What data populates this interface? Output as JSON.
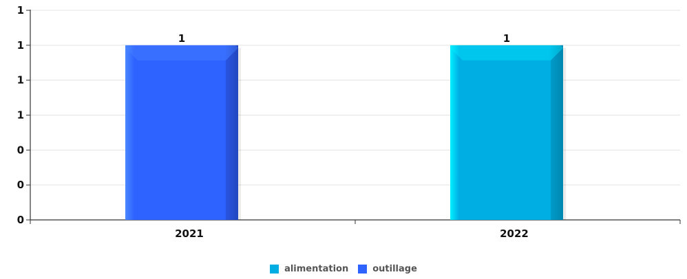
{
  "chart_data": {
    "type": "bar",
    "categories": [
      "2021",
      "2022"
    ],
    "series": [
      {
        "name": "alimentation",
        "color": "#00AEE4",
        "highlight": "#00F0FF",
        "shade": "#0087B0",
        "values": [
          null,
          1
        ]
      },
      {
        "name": "outillage",
        "color": "#2F63FF",
        "highlight": "#4A88FF",
        "shade": "#2347C0",
        "values": [
          1,
          null
        ]
      }
    ],
    "y_ticks": [
      {
        "value": 0,
        "label": "0"
      },
      {
        "value": 0.2,
        "label": "0"
      },
      {
        "value": 0.4,
        "label": "0"
      },
      {
        "value": 0.6,
        "label": "1"
      },
      {
        "value": 0.8,
        "label": "1"
      },
      {
        "value": 1.0,
        "label": "1"
      },
      {
        "value": 1.2,
        "label": "1"
      }
    ],
    "data_labels": [
      "1",
      "1"
    ],
    "ylim": [
      0,
      1.2
    ],
    "grid": true,
    "legend_position": "bottom-center"
  },
  "legend": {
    "items": [
      {
        "label": "alimentation",
        "color": "#00AEE4"
      },
      {
        "label": "outillage",
        "color": "#2F63FF"
      }
    ]
  }
}
